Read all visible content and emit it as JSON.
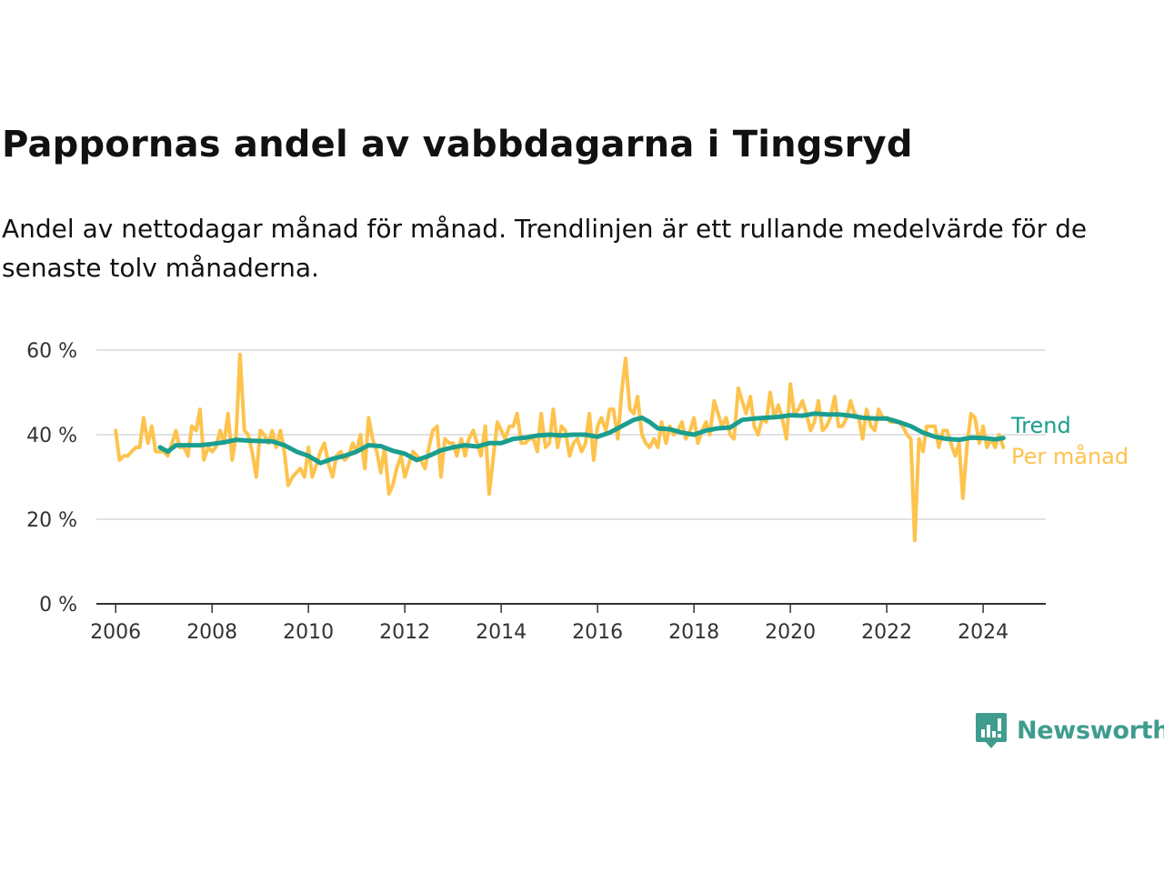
{
  "title": "Pappornas andel av vabbdagarna i Tingsryd",
  "subtitle": "Andel av nettodagar månad för månad. Trendlinjen är ett rullande medelvärde för de senaste tolv månaderna.",
  "logo": {
    "text": "Newsworthy",
    "icon": "newsworthy-logo-icon"
  },
  "colors": {
    "trend": "#1a9e8f",
    "monthly": "#fdc34d",
    "grid": "#d9d9d9",
    "axis": "#333333",
    "logo": "#3f9c8e"
  },
  "chart_data": {
    "type": "line",
    "title": "Pappornas andel av vabbdagarna i Tingsryd",
    "xlabel": "",
    "ylabel": "",
    "xlim": [
      2005.6,
      2025.3
    ],
    "ylim": [
      0,
      60
    ],
    "y_ticks": [
      0,
      20,
      40,
      60
    ],
    "y_tick_labels": [
      "0 %",
      "20 %",
      "40 %",
      "60 %"
    ],
    "x_ticks": [
      2006,
      2008,
      2010,
      2012,
      2014,
      2016,
      2018,
      2020,
      2022,
      2024
    ],
    "x_tick_labels": [
      "2006",
      "2008",
      "2010",
      "2012",
      "2014",
      "2016",
      "2018",
      "2020",
      "2022",
      "2024"
    ],
    "grid": "horizontal",
    "legend": "inline labels at right end of lines",
    "series": [
      {
        "name": "Per månad",
        "color": "#fdc34d",
        "points": [
          [
            2006.0,
            41
          ],
          [
            2006.08,
            34
          ],
          [
            2006.17,
            35
          ],
          [
            2006.25,
            35
          ],
          [
            2006.33,
            36
          ],
          [
            2006.42,
            37
          ],
          [
            2006.5,
            37
          ],
          [
            2006.58,
            44
          ],
          [
            2006.67,
            38
          ],
          [
            2006.75,
            42
          ],
          [
            2006.83,
            36
          ],
          [
            2006.92,
            36
          ],
          [
            2007.0,
            36
          ],
          [
            2007.08,
            35
          ],
          [
            2007.17,
            38
          ],
          [
            2007.25,
            41
          ],
          [
            2007.33,
            37
          ],
          [
            2007.42,
            37
          ],
          [
            2007.5,
            35
          ],
          [
            2007.58,
            42
          ],
          [
            2007.67,
            41
          ],
          [
            2007.75,
            46
          ],
          [
            2007.83,
            34
          ],
          [
            2007.92,
            37
          ],
          [
            2008.0,
            36
          ],
          [
            2008.08,
            37
          ],
          [
            2008.17,
            41
          ],
          [
            2008.25,
            38
          ],
          [
            2008.33,
            45
          ],
          [
            2008.42,
            34
          ],
          [
            2008.5,
            40
          ],
          [
            2008.58,
            59
          ],
          [
            2008.67,
            41
          ],
          [
            2008.75,
            40
          ],
          [
            2008.83,
            36
          ],
          [
            2008.92,
            30
          ],
          [
            2009.0,
            41
          ],
          [
            2009.08,
            40
          ],
          [
            2009.17,
            38
          ],
          [
            2009.25,
            41
          ],
          [
            2009.33,
            37
          ],
          [
            2009.42,
            41
          ],
          [
            2009.5,
            36
          ],
          [
            2009.58,
            28
          ],
          [
            2009.67,
            30
          ],
          [
            2009.75,
            31
          ],
          [
            2009.83,
            32
          ],
          [
            2009.92,
            30
          ],
          [
            2010.0,
            37
          ],
          [
            2010.08,
            30
          ],
          [
            2010.17,
            33
          ],
          [
            2010.25,
            36
          ],
          [
            2010.33,
            38
          ],
          [
            2010.42,
            33
          ],
          [
            2010.5,
            30
          ],
          [
            2010.58,
            35
          ],
          [
            2010.67,
            36
          ],
          [
            2010.75,
            34
          ],
          [
            2010.83,
            35
          ],
          [
            2010.92,
            38
          ],
          [
            2011.0,
            36
          ],
          [
            2011.08,
            40
          ],
          [
            2011.17,
            32
          ],
          [
            2011.25,
            44
          ],
          [
            2011.33,
            39
          ],
          [
            2011.42,
            36
          ],
          [
            2011.5,
            31
          ],
          [
            2011.58,
            37
          ],
          [
            2011.67,
            26
          ],
          [
            2011.75,
            28
          ],
          [
            2011.83,
            32
          ],
          [
            2011.92,
            35
          ],
          [
            2012.0,
            30
          ],
          [
            2012.08,
            33
          ],
          [
            2012.17,
            36
          ],
          [
            2012.25,
            35
          ],
          [
            2012.33,
            34
          ],
          [
            2012.42,
            32
          ],
          [
            2012.5,
            37
          ],
          [
            2012.58,
            41
          ],
          [
            2012.67,
            42
          ],
          [
            2012.75,
            30
          ],
          [
            2012.83,
            39
          ],
          [
            2012.92,
            38
          ],
          [
            2013.0,
            38
          ],
          [
            2013.08,
            35
          ],
          [
            2013.17,
            39
          ],
          [
            2013.25,
            35
          ],
          [
            2013.33,
            39
          ],
          [
            2013.42,
            41
          ],
          [
            2013.5,
            38
          ],
          [
            2013.58,
            35
          ],
          [
            2013.67,
            42
          ],
          [
            2013.75,
            26
          ],
          [
            2013.83,
            34
          ],
          [
            2013.92,
            43
          ],
          [
            2014.0,
            41
          ],
          [
            2014.08,
            39
          ],
          [
            2014.17,
            42
          ],
          [
            2014.25,
            42
          ],
          [
            2014.33,
            45
          ],
          [
            2014.42,
            38
          ],
          [
            2014.5,
            38
          ],
          [
            2014.58,
            39
          ],
          [
            2014.67,
            39
          ],
          [
            2014.75,
            36
          ],
          [
            2014.83,
            45
          ],
          [
            2014.92,
            37
          ],
          [
            2015.0,
            38
          ],
          [
            2015.08,
            46
          ],
          [
            2015.17,
            37
          ],
          [
            2015.25,
            42
          ],
          [
            2015.33,
            41
          ],
          [
            2015.42,
            35
          ],
          [
            2015.5,
            38
          ],
          [
            2015.58,
            39
          ],
          [
            2015.67,
            36
          ],
          [
            2015.75,
            38
          ],
          [
            2015.83,
            45
          ],
          [
            2015.92,
            34
          ],
          [
            2016.0,
            42
          ],
          [
            2016.08,
            44
          ],
          [
            2016.17,
            41
          ],
          [
            2016.25,
            46
          ],
          [
            2016.33,
            46
          ],
          [
            2016.42,
            39
          ],
          [
            2016.5,
            50
          ],
          [
            2016.58,
            58
          ],
          [
            2016.67,
            46
          ],
          [
            2016.75,
            45
          ],
          [
            2016.83,
            49
          ],
          [
            2016.92,
            40
          ],
          [
            2017.0,
            38
          ],
          [
            2017.08,
            37
          ],
          [
            2017.17,
            39
          ],
          [
            2017.25,
            37
          ],
          [
            2017.33,
            43
          ],
          [
            2017.42,
            38
          ],
          [
            2017.5,
            42
          ],
          [
            2017.58,
            40
          ],
          [
            2017.67,
            41
          ],
          [
            2017.75,
            43
          ],
          [
            2017.83,
            39
          ],
          [
            2017.92,
            41
          ],
          [
            2018.0,
            44
          ],
          [
            2018.08,
            38
          ],
          [
            2018.17,
            41
          ],
          [
            2018.25,
            43
          ],
          [
            2018.33,
            40
          ],
          [
            2018.42,
            48
          ],
          [
            2018.5,
            45
          ],
          [
            2018.58,
            42
          ],
          [
            2018.67,
            44
          ],
          [
            2018.75,
            40
          ],
          [
            2018.83,
            39
          ],
          [
            2018.92,
            51
          ],
          [
            2019.0,
            48
          ],
          [
            2019.08,
            45
          ],
          [
            2019.17,
            49
          ],
          [
            2019.25,
            42
          ],
          [
            2019.33,
            40
          ],
          [
            2019.42,
            44
          ],
          [
            2019.5,
            43
          ],
          [
            2019.58,
            50
          ],
          [
            2019.67,
            44
          ],
          [
            2019.75,
            47
          ],
          [
            2019.83,
            44
          ],
          [
            2019.92,
            39
          ],
          [
            2020.0,
            52
          ],
          [
            2020.08,
            45
          ],
          [
            2020.17,
            46
          ],
          [
            2020.25,
            48
          ],
          [
            2020.33,
            45
          ],
          [
            2020.42,
            41
          ],
          [
            2020.5,
            43
          ],
          [
            2020.58,
            48
          ],
          [
            2020.67,
            41
          ],
          [
            2020.75,
            42
          ],
          [
            2020.83,
            44
          ],
          [
            2020.92,
            49
          ],
          [
            2021.0,
            42
          ],
          [
            2021.08,
            42
          ],
          [
            2021.17,
            44
          ],
          [
            2021.25,
            48
          ],
          [
            2021.33,
            45
          ],
          [
            2021.42,
            44
          ],
          [
            2021.5,
            39
          ],
          [
            2021.58,
            46
          ],
          [
            2021.67,
            42
          ],
          [
            2021.75,
            41
          ],
          [
            2021.83,
            46
          ],
          [
            2021.92,
            44
          ],
          [
            2022.0,
            44
          ],
          [
            2022.08,
            43
          ],
          [
            2022.17,
            43
          ],
          [
            2022.25,
            43
          ],
          [
            2022.33,
            42
          ],
          [
            2022.42,
            40
          ],
          [
            2022.5,
            39
          ],
          [
            2022.58,
            15
          ],
          [
            2022.67,
            39
          ],
          [
            2022.75,
            36
          ],
          [
            2022.83,
            42
          ],
          [
            2022.92,
            42
          ],
          [
            2023.0,
            42
          ],
          [
            2023.08,
            37
          ],
          [
            2023.17,
            41
          ],
          [
            2023.25,
            41
          ],
          [
            2023.33,
            38
          ],
          [
            2023.42,
            35
          ],
          [
            2023.5,
            38
          ],
          [
            2023.58,
            25
          ],
          [
            2023.67,
            38
          ],
          [
            2023.75,
            45
          ],
          [
            2023.83,
            44
          ],
          [
            2023.92,
            38
          ],
          [
            2024.0,
            42
          ],
          [
            2024.08,
            37
          ],
          [
            2024.17,
            39
          ],
          [
            2024.25,
            37
          ],
          [
            2024.33,
            40
          ],
          [
            2024.42,
            37
          ]
        ]
      },
      {
        "name": "Trend",
        "color": "#1a9e8f",
        "points": [
          [
            2006.92,
            37
          ],
          [
            2007.08,
            36
          ],
          [
            2007.25,
            37.5
          ],
          [
            2007.5,
            37.5
          ],
          [
            2007.75,
            37.5
          ],
          [
            2008.0,
            37.8
          ],
          [
            2008.25,
            38.2
          ],
          [
            2008.5,
            38.8
          ],
          [
            2008.75,
            38.6
          ],
          [
            2009.0,
            38.5
          ],
          [
            2009.25,
            38.4
          ],
          [
            2009.5,
            37.5
          ],
          [
            2009.75,
            36
          ],
          [
            2010.0,
            35
          ],
          [
            2010.25,
            33.3
          ],
          [
            2010.5,
            34.3
          ],
          [
            2010.75,
            35
          ],
          [
            2011.0,
            36
          ],
          [
            2011.25,
            37.5
          ],
          [
            2011.5,
            37.3
          ],
          [
            2011.75,
            36.2
          ],
          [
            2012.0,
            35.5
          ],
          [
            2012.25,
            34
          ],
          [
            2012.5,
            35
          ],
          [
            2012.75,
            36.3
          ],
          [
            2013.0,
            37
          ],
          [
            2013.25,
            37.5
          ],
          [
            2013.5,
            37.2
          ],
          [
            2013.75,
            38
          ],
          [
            2014.0,
            38
          ],
          [
            2014.25,
            39
          ],
          [
            2014.5,
            39.3
          ],
          [
            2014.75,
            39.8
          ],
          [
            2015.0,
            40
          ],
          [
            2015.25,
            39.8
          ],
          [
            2015.5,
            40
          ],
          [
            2015.75,
            40
          ],
          [
            2016.0,
            39.5
          ],
          [
            2016.25,
            40.5
          ],
          [
            2016.5,
            42
          ],
          [
            2016.75,
            43.5
          ],
          [
            2016.92,
            44
          ],
          [
            2017.08,
            43
          ],
          [
            2017.25,
            41.5
          ],
          [
            2017.5,
            41.3
          ],
          [
            2017.75,
            40.5
          ],
          [
            2018.0,
            40
          ],
          [
            2018.25,
            41
          ],
          [
            2018.5,
            41.5
          ],
          [
            2018.75,
            41.7
          ],
          [
            2019.0,
            43.5
          ],
          [
            2019.25,
            43.8
          ],
          [
            2019.5,
            44
          ],
          [
            2019.75,
            44.2
          ],
          [
            2020.0,
            44.6
          ],
          [
            2020.25,
            44.5
          ],
          [
            2020.5,
            45
          ],
          [
            2020.75,
            44.8
          ],
          [
            2021.0,
            44.8
          ],
          [
            2021.25,
            44.5
          ],
          [
            2021.5,
            44
          ],
          [
            2021.75,
            43.8
          ],
          [
            2022.0,
            43.8
          ],
          [
            2022.25,
            43
          ],
          [
            2022.5,
            42
          ],
          [
            2022.75,
            40.5
          ],
          [
            2023.0,
            39.5
          ],
          [
            2023.25,
            39
          ],
          [
            2023.5,
            38.8
          ],
          [
            2023.75,
            39.3
          ],
          [
            2024.0,
            39.2
          ],
          [
            2024.25,
            38.9
          ],
          [
            2024.42,
            39.2
          ]
        ]
      }
    ]
  }
}
